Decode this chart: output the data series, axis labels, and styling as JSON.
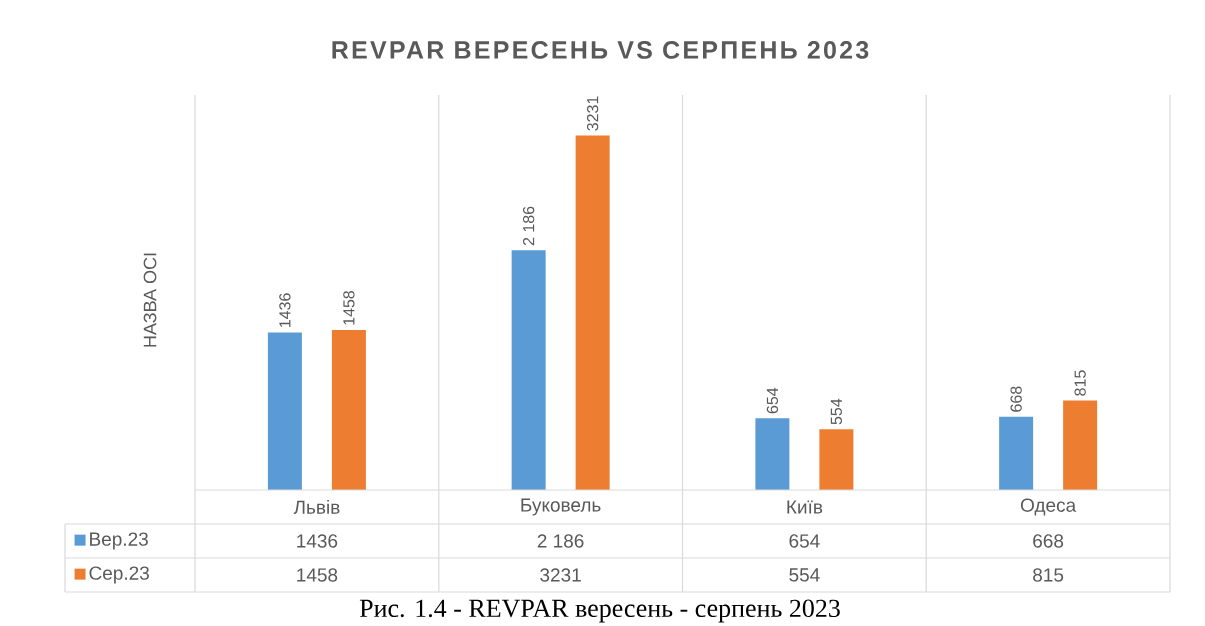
{
  "chart_data": {
    "type": "bar",
    "title": "REVPAR ВЕРЕСЕНЬ VS СЕРПЕНЬ 2023",
    "ylabel": "НАЗВА ОСІ",
    "categories": [
      "Львів",
      "Буковель",
      "Київ",
      "Одеса"
    ],
    "series": [
      {
        "name": "Вер.23",
        "color": "#5b9bd5",
        "values": [
          1436,
          2186,
          654,
          668
        ],
        "value_labels": [
          "1436",
          "2 186",
          "654",
          "668"
        ]
      },
      {
        "name": "Сер.23",
        "color": "#ed7d31",
        "values": [
          1458,
          3231,
          554,
          815
        ],
        "value_labels": [
          "1458",
          "3231",
          "554",
          "815"
        ]
      }
    ],
    "ylim": [
      0,
      3600
    ],
    "legend": "bottom",
    "annotations": [
      "Рис. 1.4 - REVPAR вересень - серпень 2023"
    ]
  }
}
